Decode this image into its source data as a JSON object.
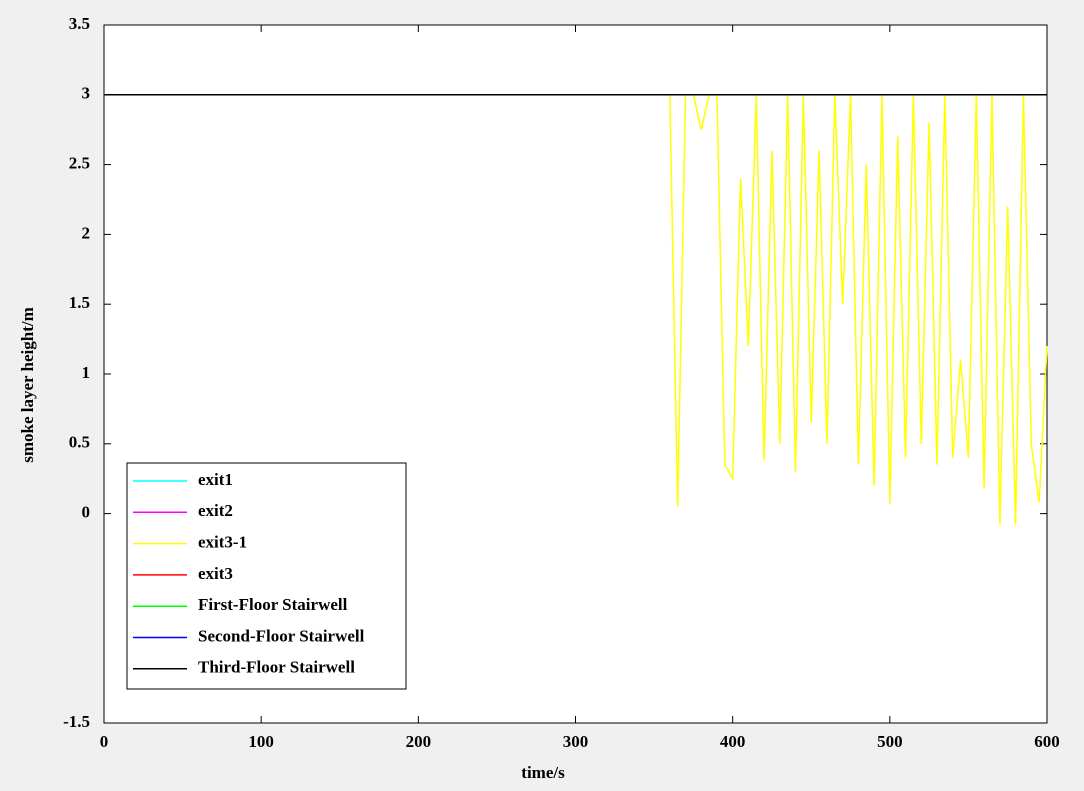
{
  "chart_data": {
    "type": "line",
    "xlabel": "time/s",
    "ylabel": "smoke layer height/m",
    "x": [
      0,
      10,
      20,
      30,
      40,
      50,
      60,
      70,
      80,
      90,
      100,
      110,
      120,
      130,
      140,
      150,
      160,
      170,
      180,
      190,
      200,
      210,
      220,
      230,
      240,
      250,
      260,
      270,
      280,
      290,
      300,
      310,
      320,
      330,
      340,
      350,
      360,
      365,
      370,
      375,
      380,
      385,
      390,
      395,
      400,
      405,
      410,
      415,
      420,
      425,
      430,
      435,
      440,
      445,
      450,
      455,
      460,
      465,
      470,
      475,
      480,
      485,
      490,
      495,
      500,
      505,
      510,
      515,
      520,
      525,
      530,
      535,
      540,
      545,
      550,
      555,
      560,
      565,
      570,
      575,
      580,
      585,
      590,
      595,
      600
    ],
    "xlim": [
      0,
      600
    ],
    "xticks": [
      0,
      100,
      200,
      300,
      400,
      500,
      600
    ],
    "ylim": [
      -1.5,
      3.5
    ],
    "yticks": [
      3.5,
      3,
      2.5,
      2,
      1.5,
      1,
      0.5,
      0,
      -1.5
    ],
    "grid": false,
    "legend": "lower-left",
    "series": [
      {
        "name": "exit3-1",
        "color": "#ffff00",
        "values": [
          3,
          3,
          3,
          3,
          3,
          3,
          3,
          3,
          3,
          3,
          3,
          3,
          3,
          3,
          3,
          3,
          3,
          3,
          3,
          3,
          3,
          3,
          3,
          3,
          3,
          3,
          3,
          3,
          3,
          3,
          3,
          3,
          3,
          3,
          3,
          3,
          3,
          0.05,
          3,
          3,
          2.75,
          3,
          3,
          0.35,
          0.25,
          2.4,
          1.2,
          3,
          0.38,
          2.6,
          0.5,
          3,
          0.3,
          3,
          0.65,
          2.6,
          0.5,
          3,
          1.5,
          3,
          0.35,
          2.5,
          0.2,
          3,
          0.07,
          2.7,
          0.4,
          3,
          0.5,
          2.8,
          0.35,
          3,
          0.4,
          1.1,
          0.4,
          3,
          0.18,
          3,
          -0.08,
          2.2,
          -0.08,
          3,
          0.5,
          0.08,
          1.2
        ]
      },
      {
        "name": "exit1",
        "color": "#00ffff",
        "values": [
          3,
          3,
          3,
          3,
          3,
          3,
          3,
          3,
          3,
          3,
          3,
          3,
          3,
          3,
          3,
          3,
          3,
          3,
          3,
          3,
          3,
          3,
          3,
          3,
          3,
          3,
          3,
          3,
          3,
          3,
          3,
          3,
          3,
          3,
          3,
          3,
          3,
          3,
          3,
          3,
          3,
          3,
          3,
          3,
          3,
          3,
          3,
          3,
          3,
          3,
          3,
          3,
          3,
          3,
          3,
          3,
          3,
          3,
          3,
          3,
          3,
          3,
          3,
          3,
          3,
          3,
          3,
          3,
          3,
          3,
          3,
          3,
          3,
          3,
          3,
          3,
          3,
          3,
          3,
          3,
          3,
          3,
          3,
          3,
          3
        ]
      },
      {
        "name": "exit2",
        "color": "#ff00ff",
        "values": [
          3,
          3,
          3,
          3,
          3,
          3,
          3,
          3,
          3,
          3,
          3,
          3,
          3,
          3,
          3,
          3,
          3,
          3,
          3,
          3,
          3,
          3,
          3,
          3,
          3,
          3,
          3,
          3,
          3,
          3,
          3,
          3,
          3,
          3,
          3,
          3,
          3,
          3,
          3,
          3,
          3,
          3,
          3,
          3,
          3,
          3,
          3,
          3,
          3,
          3,
          3,
          3,
          3,
          3,
          3,
          3,
          3,
          3,
          3,
          3,
          3,
          3,
          3,
          3,
          3,
          3,
          3,
          3,
          3,
          3,
          3,
          3,
          3,
          3,
          3,
          3,
          3,
          3,
          3,
          3,
          3,
          3,
          3,
          3,
          3
        ]
      },
      {
        "name": "exit3",
        "color": "#ff0000",
        "values": [
          3,
          3,
          3,
          3,
          3,
          3,
          3,
          3,
          3,
          3,
          3,
          3,
          3,
          3,
          3,
          3,
          3,
          3,
          3,
          3,
          3,
          3,
          3,
          3,
          3,
          3,
          3,
          3,
          3,
          3,
          3,
          3,
          3,
          3,
          3,
          3,
          3,
          3,
          3,
          3,
          3,
          3,
          3,
          3,
          3,
          3,
          3,
          3,
          3,
          3,
          3,
          3,
          3,
          3,
          3,
          3,
          3,
          3,
          3,
          3,
          3,
          3,
          3,
          3,
          3,
          3,
          3,
          3,
          3,
          3,
          3,
          3,
          3,
          3,
          3,
          3,
          3,
          3,
          3,
          3,
          3,
          3,
          3,
          3,
          3
        ]
      },
      {
        "name": "First-Floor Stairwell",
        "color": "#00ff00",
        "values": [
          3,
          3,
          3,
          3,
          3,
          3,
          3,
          3,
          3,
          3,
          3,
          3,
          3,
          3,
          3,
          3,
          3,
          3,
          3,
          3,
          3,
          3,
          3,
          3,
          3,
          3,
          3,
          3,
          3,
          3,
          3,
          3,
          3,
          3,
          3,
          3,
          3,
          3,
          3,
          3,
          3,
          3,
          3,
          3,
          3,
          3,
          3,
          3,
          3,
          3,
          3,
          3,
          3,
          3,
          3,
          3,
          3,
          3,
          3,
          3,
          3,
          3,
          3,
          3,
          3,
          3,
          3,
          3,
          3,
          3,
          3,
          3,
          3,
          3,
          3,
          3,
          3,
          3,
          3,
          3,
          3,
          3,
          3,
          3,
          3
        ]
      },
      {
        "name": "Second-Floor Stairwell",
        "color": "#0000ff",
        "values": [
          3,
          3,
          3,
          3,
          3,
          3,
          3,
          3,
          3,
          3,
          3,
          3,
          3,
          3,
          3,
          3,
          3,
          3,
          3,
          3,
          3,
          3,
          3,
          3,
          3,
          3,
          3,
          3,
          3,
          3,
          3,
          3,
          3,
          3,
          3,
          3,
          3,
          3,
          3,
          3,
          3,
          3,
          3,
          3,
          3,
          3,
          3,
          3,
          3,
          3,
          3,
          3,
          3,
          3,
          3,
          3,
          3,
          3,
          3,
          3,
          3,
          3,
          3,
          3,
          3,
          3,
          3,
          3,
          3,
          3,
          3,
          3,
          3,
          3,
          3,
          3,
          3,
          3,
          3,
          3,
          3,
          3,
          3,
          3,
          3
        ]
      },
      {
        "name": "Third-Floor Stairwell",
        "color": "#000000",
        "values": [
          3,
          3,
          3,
          3,
          3,
          3,
          3,
          3,
          3,
          3,
          3,
          3,
          3,
          3,
          3,
          3,
          3,
          3,
          3,
          3,
          3,
          3,
          3,
          3,
          3,
          3,
          3,
          3,
          3,
          3,
          3,
          3,
          3,
          3,
          3,
          3,
          3,
          3,
          3,
          3,
          3,
          3,
          3,
          3,
          3,
          3,
          3,
          3,
          3,
          3,
          3,
          3,
          3,
          3,
          3,
          3,
          3,
          3,
          3,
          3,
          3,
          3,
          3,
          3,
          3,
          3,
          3,
          3,
          3,
          3,
          3,
          3,
          3,
          3,
          3,
          3,
          3,
          3,
          3,
          3,
          3,
          3,
          3,
          3,
          3
        ]
      }
    ],
    "legend_order": [
      1,
      2,
      0,
      3,
      4,
      5,
      6
    ]
  }
}
